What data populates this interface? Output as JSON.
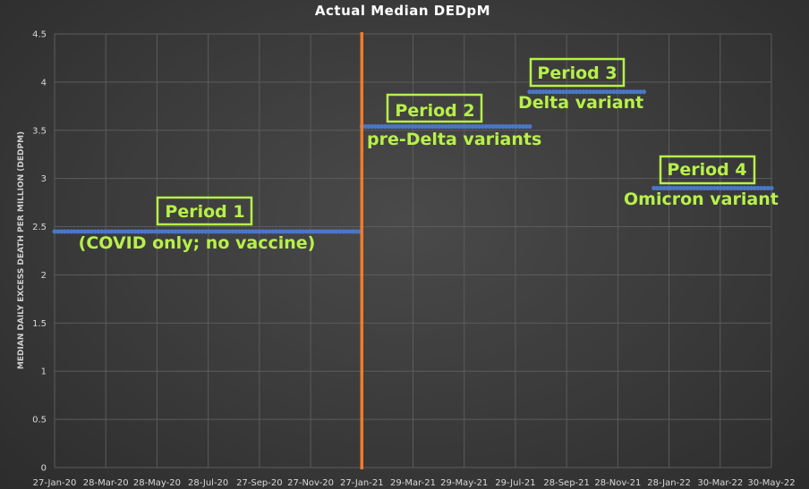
{
  "chart_data": {
    "type": "scatter",
    "title": "Actual Median DEDpM",
    "ylabel": "MEDIAN DAILY EXCESS DEATH PER MILLION (DEDPM)",
    "xlabel": "",
    "ylim": [
      0,
      4.5
    ],
    "yticks": [
      "0",
      "0.5",
      "1",
      "1.5",
      "2",
      "2.5",
      "3",
      "3.5",
      "4",
      "4.5"
    ],
    "xtick_labels": [
      "27-Jan-20",
      "28-Mar-20",
      "28-May-20",
      "28-Jul-20",
      "27-Sep-20",
      "27-Nov-20",
      "27-Jan-21",
      "29-Mar-21",
      "29-May-21",
      "29-Jul-21",
      "28-Sep-21",
      "28-Nov-21",
      "28-Jan-22",
      "30-Mar-22",
      "30-May-22"
    ],
    "grid": true,
    "vertical_line": {
      "date": "27-Jan-21",
      "color": "#f07c2a"
    },
    "series": [
      {
        "x_start": "27-Jan-20",
        "x_end": "27-Jan-21",
        "value": 2.45
      },
      {
        "x_start": "27-Jan-21",
        "x_end": "15-Aug-21",
        "value": 3.54
      },
      {
        "x_start": "15-Aug-21",
        "x_end": "31-Dec-21",
        "value": 3.9
      },
      {
        "x_start": "10-Jan-22",
        "x_end": "30-May-22",
        "value": 2.9
      }
    ],
    "annotations": [
      {
        "label": "Period 1",
        "sub": "(COVID only; no vaccine)"
      },
      {
        "label": "Period 2",
        "sub": "pre-Delta variants"
      },
      {
        "label": "Period 3",
        "sub": "Delta variant"
      },
      {
        "label": "Period 4",
        "sub": "Omicron variant"
      }
    ],
    "colors": {
      "points": "#4a77c6",
      "annotation": "#b7f04a",
      "vline": "#f07c2a"
    }
  }
}
